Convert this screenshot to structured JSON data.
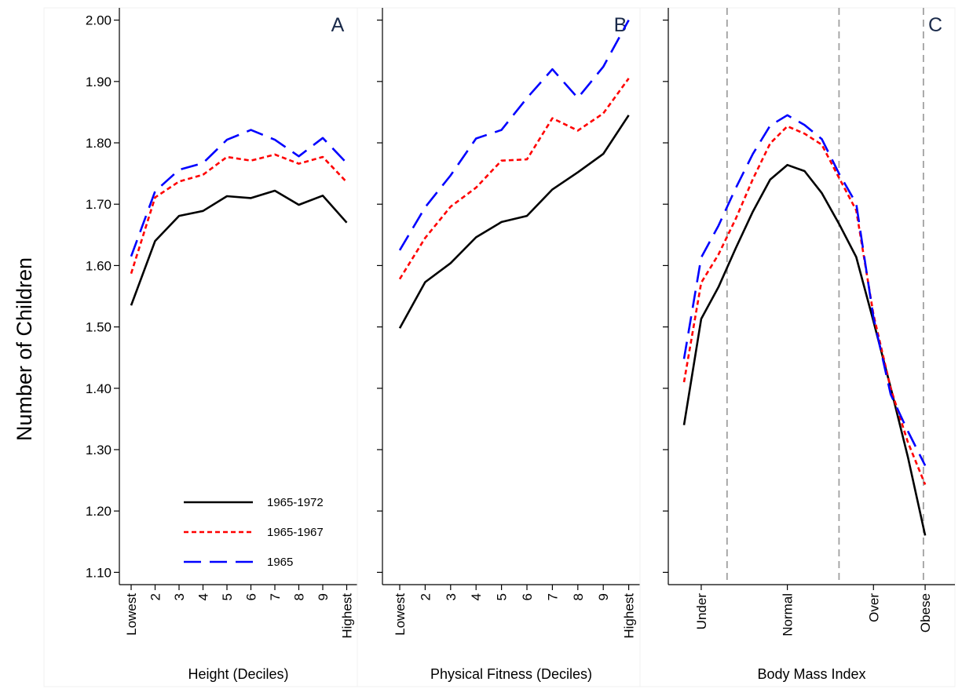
{
  "ylabel": "Number of Children",
  "yticks": [
    "1.10",
    "1.20",
    "1.30",
    "1.40",
    "1.50",
    "1.60",
    "1.70",
    "1.80",
    "1.90",
    "2.00"
  ],
  "legend": [
    {
      "label": "1965-1972",
      "color": "#000000",
      "dash": "solid"
    },
    {
      "label": "1965-1967",
      "color": "#ff0000",
      "dash": "short-dash"
    },
    {
      "label": "1965",
      "color": "#0000ff",
      "dash": "long-dash"
    }
  ],
  "colors": {
    "s1972": "#000000",
    "s1967": "#ff0000",
    "s1965": "#0000ff",
    "refline": "#a0a0a0"
  },
  "chart_data": [
    {
      "type": "line",
      "panel_label": "A",
      "xlabel": "Height (Deciles)",
      "categories": [
        "Lowest",
        "2",
        "3",
        "4",
        "5",
        "6",
        "7",
        "8",
        "9",
        "Highest"
      ],
      "ylim": [
        1.08,
        2.02
      ],
      "series": [
        {
          "name": "1965-1972",
          "values": [
            1.535,
            1.64,
            1.681,
            1.689,
            1.713,
            1.71,
            1.722,
            1.699,
            1.714,
            1.67
          ]
        },
        {
          "name": "1965-1967",
          "values": [
            1.587,
            1.711,
            1.737,
            1.748,
            1.777,
            1.771,
            1.781,
            1.766,
            1.777,
            1.736
          ]
        },
        {
          "name": "1965",
          "values": [
            1.615,
            1.721,
            1.756,
            1.767,
            1.805,
            1.821,
            1.805,
            1.778,
            1.808,
            1.767
          ]
        }
      ]
    },
    {
      "type": "line",
      "panel_label": "B",
      "xlabel": "Physical Fitness (Deciles)",
      "categories": [
        "Lowest",
        "2",
        "3",
        "4",
        "5",
        "6",
        "7",
        "8",
        "9",
        "Highest"
      ],
      "ylim": [
        1.08,
        2.02
      ],
      "series": [
        {
          "name": "1965-1972",
          "values": [
            1.498,
            1.573,
            1.604,
            1.646,
            1.671,
            1.681,
            1.724,
            1.752,
            1.782,
            1.845
          ]
        },
        {
          "name": "1965-1967",
          "values": [
            1.578,
            1.645,
            1.696,
            1.727,
            1.771,
            1.773,
            1.84,
            1.82,
            1.848,
            1.905
          ]
        },
        {
          "name": "1965",
          "values": [
            1.625,
            1.695,
            1.747,
            1.807,
            1.821,
            1.873,
            1.92,
            1.873,
            1.924,
            2.0
          ]
        }
      ]
    },
    {
      "type": "line",
      "panel_label": "C",
      "xlabel": "Body Mass Index",
      "x_tick_labels": [
        {
          "label": "Under",
          "x": 17
        },
        {
          "label": "Normal",
          "x": 22
        },
        {
          "label": "Over",
          "x": 27
        },
        {
          "label": "Obese",
          "x": 30
        }
      ],
      "xlim": [
        15.5,
        31.0
      ],
      "reference_lines_x": [
        18.5,
        25.0,
        29.9
      ],
      "ylim": [
        1.08,
        2.02
      ],
      "series": [
        {
          "name": "1965-1972",
          "x": [
            16,
            17,
            18,
            19,
            20,
            21,
            22,
            23,
            24,
            25,
            26,
            27,
            28,
            29,
            30,
            31
          ],
          "values": [
            1.34,
            1.513,
            1.565,
            1.628,
            1.688,
            1.74,
            1.764,
            1.754,
            1.718,
            1.668,
            1.614,
            1.509,
            1.401,
            1.288,
            1.16,
            1.16
          ]
        },
        {
          "name": "1965-1967",
          "x": [
            16,
            17,
            18,
            19,
            20,
            21,
            22,
            23,
            24,
            25,
            26,
            27,
            28,
            29,
            30,
            31
          ],
          "values": [
            1.41,
            1.572,
            1.618,
            1.676,
            1.741,
            1.799,
            1.827,
            1.815,
            1.797,
            1.743,
            1.69,
            1.52,
            1.4,
            1.312,
            1.243,
            1.243
          ]
        },
        {
          "name": "1965",
          "x": [
            16,
            17,
            18,
            19,
            20,
            21,
            22,
            23,
            24,
            25,
            26,
            27,
            28,
            29,
            30,
            31
          ],
          "values": [
            1.448,
            1.613,
            1.665,
            1.726,
            1.782,
            1.828,
            1.845,
            1.829,
            1.806,
            1.75,
            1.701,
            1.515,
            1.39,
            1.33,
            1.274,
            1.274
          ]
        }
      ]
    }
  ]
}
